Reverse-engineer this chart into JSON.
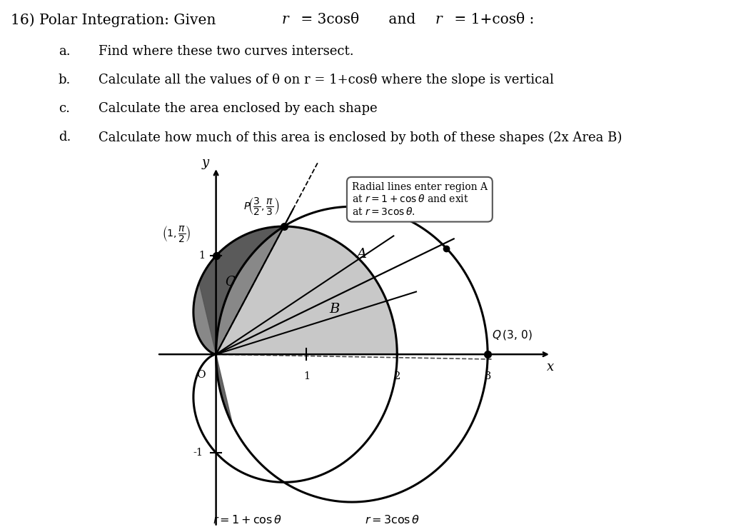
{
  "fig_bg": "#ffffff",
  "plot_bg": "#b8b8b8",
  "annotation_box": "Radial lines enter region A\nat r = 1 + cos θ and exit\nat r = 3 cos θ.",
  "region_B_color": "#c0c0c0",
  "region_C_color": "#707070",
  "text_items": [
    "a.   Find where these two curves intersect.",
    "b.   Calculate all the values of θ on r = 1+cosθ where the slope is vertical",
    "c.   Calculate the area enclosed by each shape",
    "d.   Calculate how much of this area is enclosed by both of these shapes (2x Area B)"
  ],
  "title_prefix": "16) Polar Integration: Given ",
  "title_r1": "r",
  "title_eq1": " = 3cosθ",
  "title_and": " and ",
  "title_r2": "r",
  "title_eq2": " = 1+cosθ :"
}
